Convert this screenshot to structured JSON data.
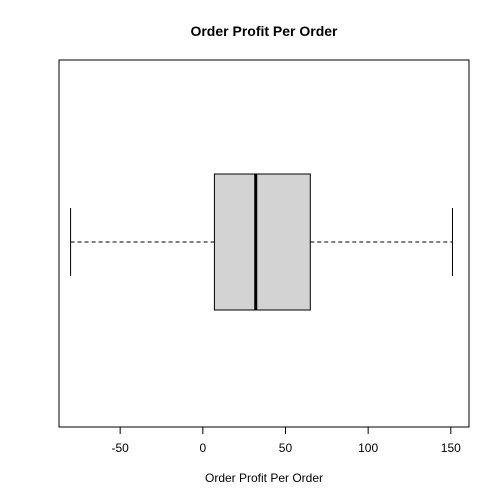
{
  "chart_data": {
    "type": "boxplot",
    "orientation": "horizontal",
    "title": "Order Profit Per Order",
    "xlabel": "Order Profit Per Order",
    "ylabel": "",
    "xlim": [
      -87,
      161
    ],
    "x_ticks": [
      -50,
      0,
      50,
      100,
      150
    ],
    "x_tick_labels": [
      "-50",
      "0",
      "50",
      "100",
      "150"
    ],
    "grid": false,
    "box": {
      "whisker_low": -80,
      "q1": 7,
      "median": 32,
      "q3": 65,
      "whisker_high": 151
    },
    "colors": {
      "box_fill": "#d3d3d3",
      "stroke": "#000000"
    }
  }
}
